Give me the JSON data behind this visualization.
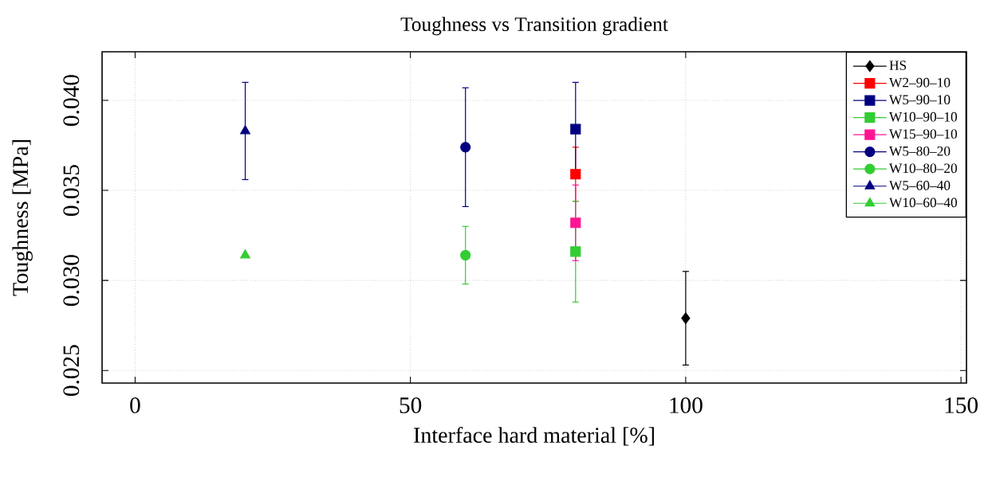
{
  "chart_data": {
    "type": "scatter",
    "title": "Toughness vs Transition gradient",
    "xlabel": "Interface hard material [%]",
    "ylabel": "Toughness [MPa]",
    "xlim": [
      -6,
      151
    ],
    "ylim": [
      0.0243,
      0.0427
    ],
    "xticks": [
      0,
      50,
      100,
      150
    ],
    "yticks": [
      {
        "value": 0.025,
        "label": "0.025"
      },
      {
        "value": 0.03,
        "label": "0.030"
      },
      {
        "value": 0.035,
        "label": "0.035"
      },
      {
        "value": 0.04,
        "label": "0.040"
      }
    ],
    "grid": true,
    "legend": "top right",
    "series": [
      {
        "name": "HS",
        "color": "#000000",
        "marker": "diamond",
        "x": [
          100
        ],
        "values": [
          0.0279
        ],
        "errors": [
          0.0026
        ]
      },
      {
        "name": "W2–90–10",
        "color": "#ff0000",
        "marker": "square",
        "x": [
          80
        ],
        "values": [
          0.0359
        ],
        "errors": [
          0.0015
        ]
      },
      {
        "name": "W5–90–10",
        "color": "#000080",
        "marker": "square",
        "x": [
          80
        ],
        "values": [
          0.0384
        ],
        "errors": [
          0.0026
        ]
      },
      {
        "name": "W10–90–10",
        "color": "#32cd32",
        "marker": "square",
        "x": [
          80
        ],
        "values": [
          0.0316
        ],
        "errors": [
          0.0028
        ]
      },
      {
        "name": "W15–90–10",
        "color": "#ff1493",
        "marker": "square",
        "x": [
          80
        ],
        "values": [
          0.0332
        ],
        "errors": [
          0.0021
        ]
      },
      {
        "name": "W5–80–20",
        "color": "#000080",
        "marker": "circle",
        "x": [
          60
        ],
        "values": [
          0.0374
        ],
        "errors": [
          0.0033
        ]
      },
      {
        "name": "W10–80–20",
        "color": "#32cd32",
        "marker": "circle",
        "x": [
          60
        ],
        "values": [
          0.0314
        ],
        "errors": [
          0.0016
        ]
      },
      {
        "name": "W5–60–40",
        "color": "#000080",
        "marker": "triangle",
        "x": [
          20
        ],
        "values": [
          0.0383
        ],
        "errors": [
          0.0027
        ]
      },
      {
        "name": "W10–60–40",
        "color": "#32cd32",
        "marker": "triangle",
        "x": [
          20
        ],
        "values": [
          0.0314
        ]
      }
    ]
  }
}
